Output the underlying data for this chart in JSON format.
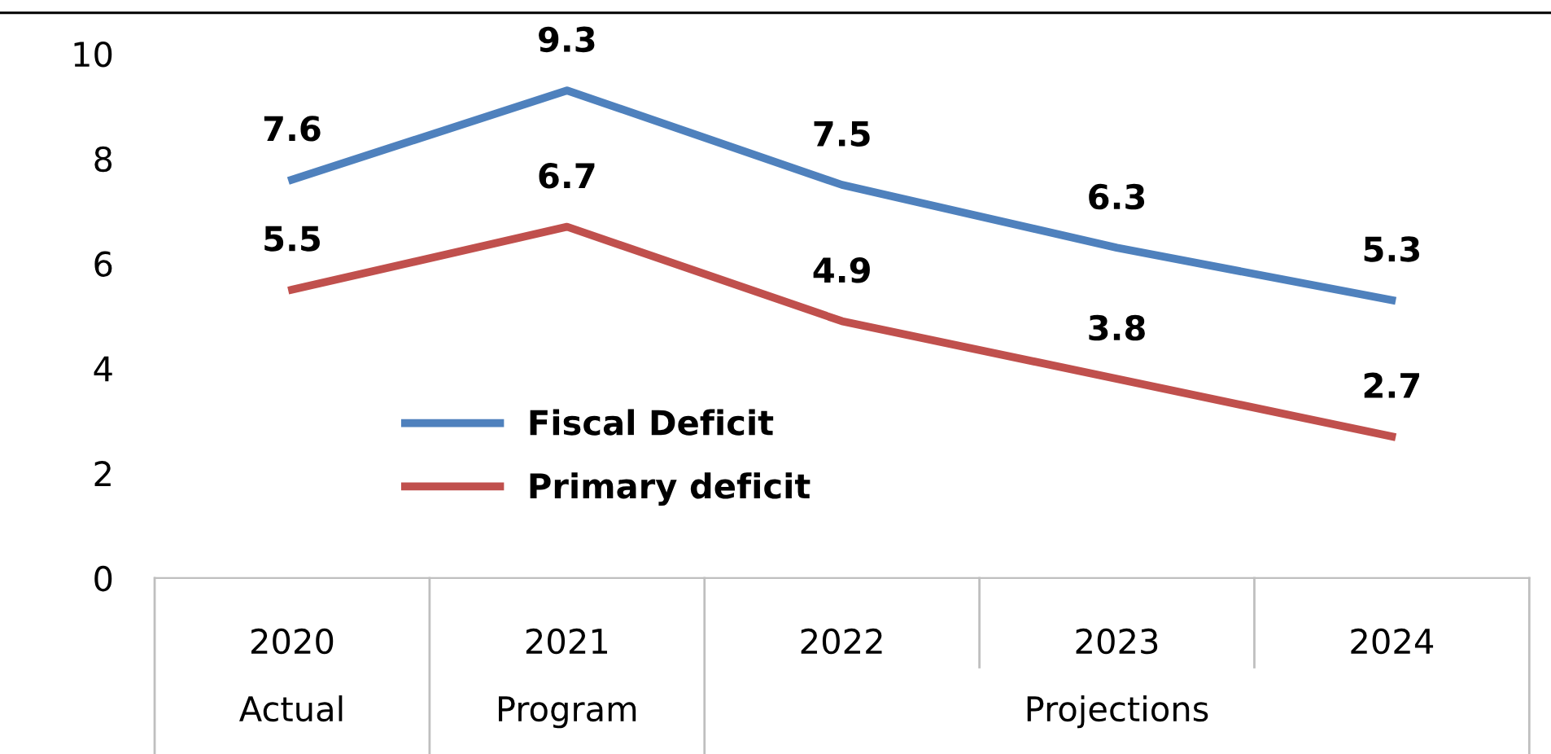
{
  "chart_data": {
    "type": "line",
    "categories": [
      "2020",
      "2021",
      "2022",
      "2023",
      "2024"
    ],
    "series": [
      {
        "name": "Fiscal Deficit",
        "color": "#4f81bd",
        "values": [
          7.6,
          9.3,
          7.5,
          6.3,
          5.3
        ]
      },
      {
        "name": "Primary deficit",
        "color": "#c0504d",
        "values": [
          5.5,
          6.7,
          4.9,
          3.8,
          2.7
        ]
      }
    ],
    "annotations": [
      "Actual",
      "Program",
      "Projections"
    ],
    "ylim": [
      0,
      10
    ],
    "yticks": [
      0,
      2,
      4,
      6,
      8,
      10
    ],
    "data_labels": true,
    "legend": "bottom left",
    "grid": false,
    "marker": "none",
    "line_style": "solid"
  }
}
